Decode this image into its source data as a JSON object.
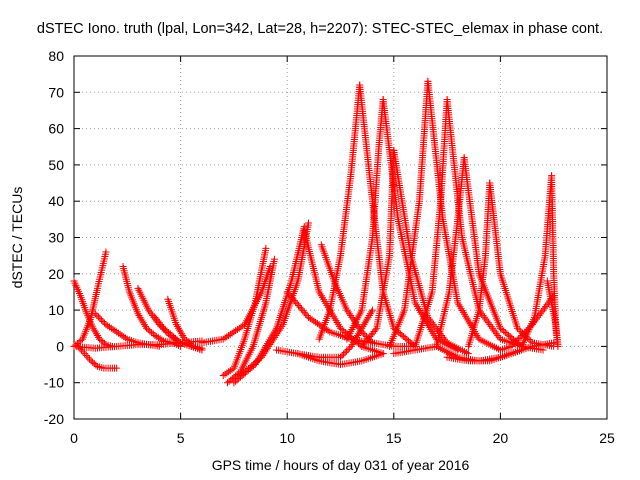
{
  "chart_data": {
    "type": "scatter",
    "title": "dSTEC Iono. truth (lpal, Lon=342, Lat=28, h=2207): STEC-STEC_elemax in phase cont.",
    "xlabel": "GPS time / hours of day 031 of year 2016",
    "ylabel": "dSTEC  / TECUs",
    "xlim": [
      0,
      25
    ],
    "ylim": [
      -20,
      80
    ],
    "xticks": [
      "0",
      "5",
      "10",
      "15",
      "20",
      "25"
    ],
    "yticks": [
      "-20",
      "-10",
      "0",
      "10",
      "20",
      "30",
      "40",
      "50",
      "60",
      "70",
      "80"
    ],
    "grid": true,
    "marker": "+",
    "color": "#ff0000",
    "series": [
      {
        "x": [
          0.0,
          0.3,
          0.6,
          0.9,
          1.2,
          1.5,
          1.8
        ],
        "y": [
          18,
          14,
          9,
          5,
          2,
          0.5,
          0
        ]
      },
      {
        "x": [
          0.2,
          0.5,
          0.8,
          1.1,
          1.4,
          1.7,
          2.0
        ],
        "y": [
          0,
          -2,
          -4,
          -5.5,
          -6,
          -6,
          -6
        ]
      },
      {
        "x": [
          0.0,
          0.4,
          0.8,
          1.1,
          1.3,
          1.5
        ],
        "y": [
          0,
          2,
          8,
          16,
          21,
          26
        ]
      },
      {
        "x": [
          1.0,
          1.5,
          2.0,
          2.5,
          3.0,
          3.5,
          4.0
        ],
        "y": [
          9,
          6,
          4,
          2,
          1,
          0.5,
          0
        ]
      },
      {
        "x": [
          2.3,
          2.6,
          3.0,
          3.4,
          3.8,
          4.2,
          4.6,
          5.0
        ],
        "y": [
          22,
          15,
          9,
          5,
          3,
          1.5,
          1,
          0
        ]
      },
      {
        "x": [
          3.0,
          3.5,
          4.0,
          4.5,
          5.0,
          5.5,
          6.0
        ],
        "y": [
          16,
          10,
          6,
          3,
          1,
          0,
          -1
        ]
      },
      {
        "x": [
          3.8,
          4.2,
          4.6,
          5.0,
          5.5,
          6.0
        ],
        "y": [
          8,
          5,
          3,
          1,
          0,
          -0.5
        ]
      },
      {
        "x": [
          4.4,
          4.8,
          5.2,
          5.6,
          6.0
        ],
        "y": [
          13,
          6,
          2,
          0,
          -1
        ]
      },
      {
        "x": [
          0.0,
          1.0,
          2.0,
          3.0,
          4.0,
          5.0,
          6.0
        ],
        "y": [
          0,
          -0.5,
          0,
          0.5,
          0.5,
          1,
          1.5
        ]
      },
      {
        "x": [
          7.0,
          7.5,
          8.0,
          8.5,
          9.0
        ],
        "y": [
          -8,
          -6,
          2,
          12,
          27
        ]
      },
      {
        "x": [
          7.2,
          7.8,
          8.4,
          9.0,
          9.4
        ],
        "y": [
          -10,
          -7,
          0,
          12,
          24
        ]
      },
      {
        "x": [
          6.0,
          7.0,
          8.0,
          8.8,
          9.2
        ],
        "y": [
          1,
          2,
          6,
          15,
          22
        ]
      },
      {
        "x": [
          7.5,
          8.5,
          9.5,
          10.2,
          10.8
        ],
        "y": [
          -10,
          -5,
          5,
          18,
          33
        ]
      },
      {
        "x": [
          7.8,
          8.8,
          9.8,
          10.5,
          11.0
        ],
        "y": [
          -8,
          -3,
          6,
          18,
          34
        ]
      },
      {
        "x": [
          10.8,
          11.5,
          12.5,
          13.5,
          14.5
        ],
        "y": [
          32,
          15,
          5,
          0,
          -2
        ]
      },
      {
        "x": [
          11.5,
          12.0,
          12.5,
          13.0,
          13.4
        ],
        "y": [
          2,
          10,
          25,
          48,
          72
        ]
      },
      {
        "x": [
          13.4,
          14.0,
          14.5,
          15.0,
          16.0
        ],
        "y": [
          72,
          40,
          15,
          5,
          0
        ]
      },
      {
        "x": [
          12.8,
          13.5,
          14.0,
          14.3,
          14.5
        ],
        "y": [
          2,
          10,
          30,
          55,
          68
        ]
      },
      {
        "x": [
          14.5,
          15.2,
          16.0,
          17.0,
          18.0
        ],
        "y": [
          68,
          35,
          12,
          2,
          -1
        ]
      },
      {
        "x": [
          13.5,
          14.2,
          14.8,
          15.0
        ],
        "y": [
          0,
          5,
          25,
          54
        ]
      },
      {
        "x": [
          15.0,
          15.8,
          16.6,
          17.5,
          18.5
        ],
        "y": [
          54,
          25,
          8,
          1,
          -2
        ]
      },
      {
        "x": [
          14.8,
          15.5,
          16.2,
          16.6
        ],
        "y": [
          0,
          10,
          40,
          73
        ]
      },
      {
        "x": [
          16.6,
          17.3,
          18.0,
          19.0,
          20.0
        ],
        "y": [
          73,
          35,
          12,
          2,
          -1
        ]
      },
      {
        "x": [
          16.0,
          16.8,
          17.2,
          17.5
        ],
        "y": [
          0,
          15,
          40,
          68
        ]
      },
      {
        "x": [
          17.5,
          18.2,
          19.0,
          20.0,
          21.0
        ],
        "y": [
          68,
          30,
          10,
          2,
          0
        ]
      },
      {
        "x": [
          17.0,
          17.6,
          18.0,
          18.3
        ],
        "y": [
          0,
          15,
          35,
          52
        ]
      },
      {
        "x": [
          18.3,
          19.0,
          20.0,
          21.0,
          22.0
        ],
        "y": [
          52,
          20,
          5,
          0,
          -1
        ]
      },
      {
        "x": [
          18.5,
          19.0,
          19.3,
          19.5
        ],
        "y": [
          0,
          10,
          25,
          45
        ]
      },
      {
        "x": [
          19.5,
          20.0,
          20.8,
          21.5,
          22.5
        ],
        "y": [
          45,
          20,
          5,
          1,
          0
        ]
      },
      {
        "x": [
          21.0,
          21.6,
          22.1,
          22.4
        ],
        "y": [
          0,
          8,
          25,
          47
        ]
      },
      {
        "x": [
          22.4,
          22.5,
          22.6,
          22.7
        ],
        "y": [
          47,
          20,
          5,
          0
        ]
      },
      {
        "x": [
          9.5,
          10.5,
          11.5,
          12.5,
          13.5,
          14.5
        ],
        "y": [
          -1,
          -2,
          -4,
          -5,
          -4,
          -2
        ]
      },
      {
        "x": [
          10.5,
          11.5,
          12.5,
          13.0,
          13.5,
          14.0
        ],
        "y": [
          -2,
          -3,
          -3,
          0,
          5,
          10
        ]
      },
      {
        "x": [
          15.0,
          16.0,
          17.0,
          18.0,
          19.0,
          20.0,
          21.0
        ],
        "y": [
          -2,
          -1,
          0,
          -3,
          -4,
          -3,
          -1
        ]
      },
      {
        "x": [
          17.5,
          18.5,
          19.5,
          20.5,
          21.5,
          22.5
        ],
        "y": [
          -3,
          -4,
          -4,
          -2,
          0,
          1
        ]
      },
      {
        "x": [
          10.0,
          11.0,
          12.0,
          13.0,
          14.0,
          15.0,
          16.0
        ],
        "y": [
          15,
          8,
          4,
          2,
          1,
          0,
          0
        ]
      },
      {
        "x": [
          11.6,
          12.2,
          12.8,
          13.5,
          14.0
        ],
        "y": [
          28,
          18,
          10,
          4,
          1
        ]
      },
      {
        "x": [
          20.0,
          20.5,
          21.0,
          21.5,
          22.0,
          22.5
        ],
        "y": [
          -1,
          0,
          3,
          6,
          10,
          14
        ]
      },
      {
        "x": [
          22.2,
          22.4,
          22.6,
          22.7
        ],
        "y": [
          18,
          12,
          6,
          0
        ]
      }
    ]
  }
}
